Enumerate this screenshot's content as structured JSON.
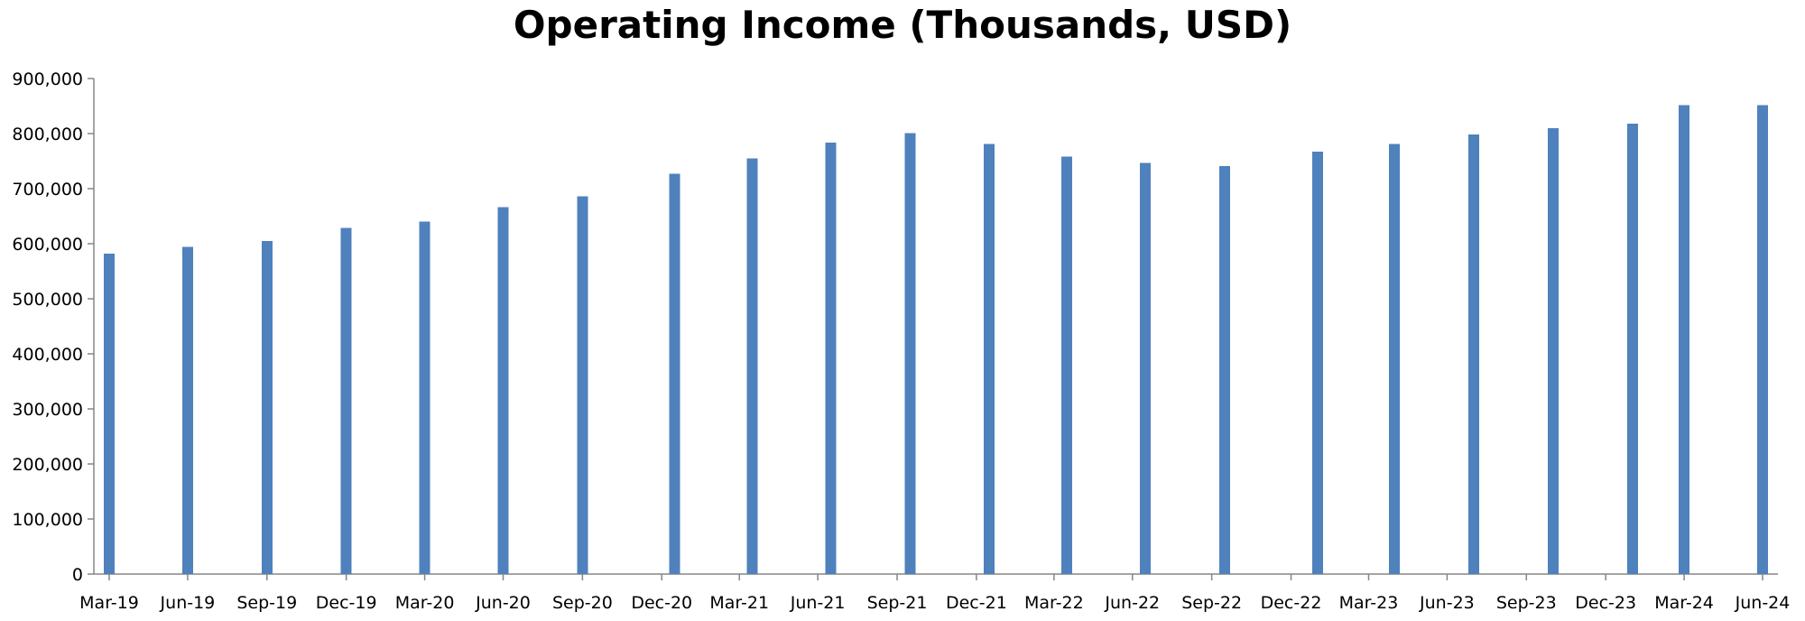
{
  "chart_data": {
    "type": "bar",
    "title": "Operating Income (Thousands, USD)",
    "xlabel": "",
    "ylabel": "",
    "ylim": [
      0,
      900000
    ],
    "yticks": [
      {
        "value": 0,
        "label": "0"
      },
      {
        "value": 100000,
        "label": "100,000"
      },
      {
        "value": 200000,
        "label": "200,000"
      },
      {
        "value": 300000,
        "label": "300,000"
      },
      {
        "value": 400000,
        "label": "400,000"
      },
      {
        "value": 500000,
        "label": "500,000"
      },
      {
        "value": 600000,
        "label": "600,000"
      },
      {
        "value": 700000,
        "label": "700,000"
      },
      {
        "value": 800000,
        "label": "800,000"
      },
      {
        "value": 900000,
        "label": "900,000"
      }
    ],
    "xrange": [
      "2019-03-31",
      "2024-06-30"
    ],
    "xticks": [
      {
        "date": "2019-03-31",
        "label": "Mar-19"
      },
      {
        "date": "2019-06-30",
        "label": "Jun-19"
      },
      {
        "date": "2019-09-30",
        "label": "Sep-19"
      },
      {
        "date": "2019-12-31",
        "label": "Dec-19"
      },
      {
        "date": "2020-03-31",
        "label": "Mar-20"
      },
      {
        "date": "2020-06-30",
        "label": "Jun-20"
      },
      {
        "date": "2020-09-30",
        "label": "Sep-20"
      },
      {
        "date": "2020-12-31",
        "label": "Dec-20"
      },
      {
        "date": "2021-03-31",
        "label": "Mar-21"
      },
      {
        "date": "2021-06-30",
        "label": "Jun-21"
      },
      {
        "date": "2021-09-30",
        "label": "Sep-21"
      },
      {
        "date": "2021-12-31",
        "label": "Dec-21"
      },
      {
        "date": "2022-03-31",
        "label": "Mar-22"
      },
      {
        "date": "2022-06-30",
        "label": "Jun-22"
      },
      {
        "date": "2022-09-30",
        "label": "Sep-22"
      },
      {
        "date": "2022-12-31",
        "label": "Dec-22"
      },
      {
        "date": "2023-03-31",
        "label": "Mar-23"
      },
      {
        "date": "2023-06-30",
        "label": "Jun-23"
      },
      {
        "date": "2023-09-30",
        "label": "Sep-23"
      },
      {
        "date": "2023-12-31",
        "label": "Dec-23"
      },
      {
        "date": "2024-03-31",
        "label": "Mar-24"
      },
      {
        "date": "2024-06-30",
        "label": "Jun-24"
      }
    ],
    "series": [
      {
        "color": "#4f81bd",
        "points": [
          {
            "x": "2019-03-31",
            "y": 582000
          },
          {
            "x": "2019-06-30",
            "y": 594000
          },
          {
            "x": "2019-09-30",
            "y": 605000
          },
          {
            "x": "2019-12-31",
            "y": 629000
          },
          {
            "x": "2020-03-31",
            "y": 640000
          },
          {
            "x": "2020-06-30",
            "y": 666000
          },
          {
            "x": "2020-09-30",
            "y": 686000
          },
          {
            "x": "2021-01-15",
            "y": 727000
          },
          {
            "x": "2021-04-15",
            "y": 755000
          },
          {
            "x": "2021-07-15",
            "y": 784000
          },
          {
            "x": "2021-10-15",
            "y": 801000
          },
          {
            "x": "2022-01-15",
            "y": 781000
          },
          {
            "x": "2022-04-15",
            "y": 758000
          },
          {
            "x": "2022-07-15",
            "y": 747000
          },
          {
            "x": "2022-10-15",
            "y": 741000
          },
          {
            "x": "2023-01-31",
            "y": 767000
          },
          {
            "x": "2023-04-30",
            "y": 781000
          },
          {
            "x": "2023-07-31",
            "y": 798000
          },
          {
            "x": "2023-10-31",
            "y": 810000
          },
          {
            "x": "2024-01-31",
            "y": 818000
          },
          {
            "x": "2024-03-31",
            "y": 852000
          },
          {
            "x": "2024-06-30",
            "y": 852000
          }
        ]
      }
    ],
    "grid": false,
    "legend": "none"
  }
}
